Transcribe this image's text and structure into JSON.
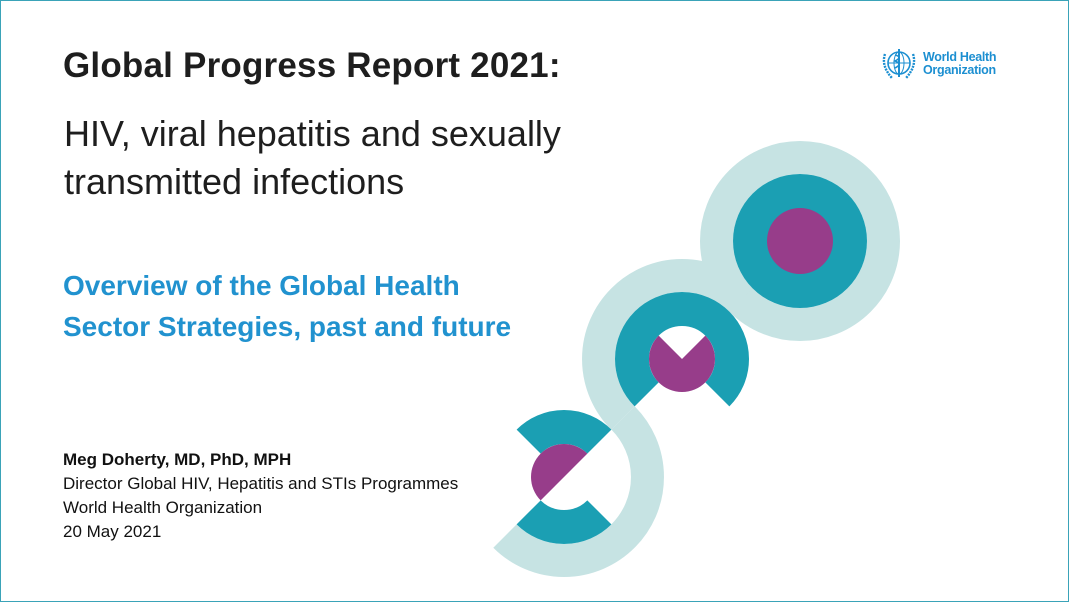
{
  "slide": {
    "title": "Global Progress Report 2021:",
    "subtitle": "HIV, viral hepatitis and sexually transmitted infections",
    "overview_line1": "Overview of the Global Health",
    "overview_line2": "Sector Strategies, past and future",
    "presenter": {
      "name": "Meg Doherty, MD, PhD, MPH",
      "role": "Director Global HIV, Hepatitis and STIs Programmes",
      "organization": "World Health Organization",
      "date": "20 May 2021"
    },
    "logo": {
      "line1": "World Health",
      "line2": "Organization",
      "icon": "who-emblem-icon"
    }
  },
  "colors": {
    "light_teal": "#c6e3e3",
    "teal": "#1b9fb3",
    "purple": "#973d8a",
    "blue_text": "#2192cf",
    "logo_blue": "#1c8fd1"
  }
}
